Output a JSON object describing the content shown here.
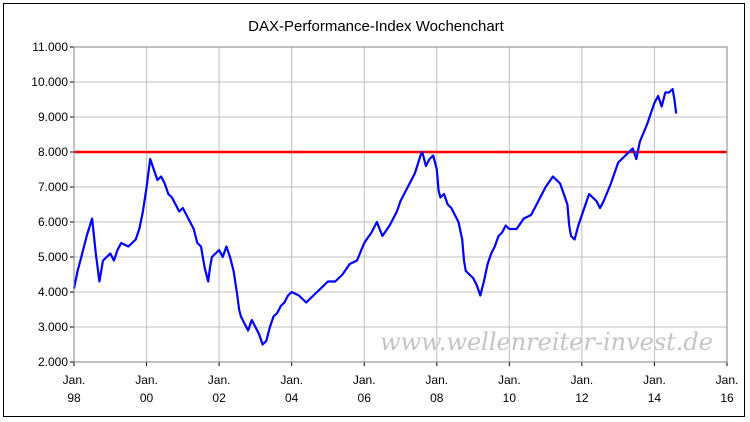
{
  "chart_data": {
    "type": "line",
    "title": "DAX-Performance-Index Wochenchart",
    "xlabel": "",
    "ylabel": "",
    "xlim": [
      1998.0,
      2016.0
    ],
    "ylim": [
      2000,
      11000
    ],
    "y_ticks": [
      2000,
      3000,
      4000,
      5000,
      6000,
      7000,
      8000,
      9000,
      10000,
      11000
    ],
    "y_tick_labels": [
      "2.000",
      "3.000",
      "4.000",
      "5.000",
      "6.000",
      "7.000",
      "8.000",
      "9.000",
      "10.000",
      "11.000"
    ],
    "x_ticks": [
      1998,
      2000,
      2002,
      2004,
      2006,
      2008,
      2010,
      2012,
      2014,
      2016
    ],
    "x_tick_labels": [
      {
        "top": "Jan.",
        "bottom": "98"
      },
      {
        "top": "Jan.",
        "bottom": "00"
      },
      {
        "top": "Jan.",
        "bottom": "02"
      },
      {
        "top": "Jan.",
        "bottom": "04"
      },
      {
        "top": "Jan.",
        "bottom": "06"
      },
      {
        "top": "Jan.",
        "bottom": "08"
      },
      {
        "top": "Jan.",
        "bottom": "10"
      },
      {
        "top": "Jan.",
        "bottom": "12"
      },
      {
        "top": "Jan.",
        "bottom": "14"
      },
      {
        "top": "Jan.",
        "bottom": "16"
      }
    ],
    "grid": true,
    "series": [
      {
        "color": "#0000ff",
        "x": [
          1998.0,
          1998.1,
          1998.2,
          1998.35,
          1998.5,
          1998.6,
          1998.7,
          1998.8,
          1998.9,
          1999.0,
          1999.1,
          1999.2,
          1999.3,
          1999.5,
          1999.7,
          1999.8,
          1999.9,
          2000.0,
          2000.1,
          2000.2,
          2000.3,
          2000.4,
          2000.5,
          2000.6,
          2000.7,
          2000.8,
          2000.9,
          2001.0,
          2001.1,
          2001.2,
          2001.3,
          2001.4,
          2001.5,
          2001.6,
          2001.7,
          2001.75,
          2001.8,
          2001.9,
          2002.0,
          2002.1,
          2002.2,
          2002.3,
          2002.4,
          2002.5,
          2002.55,
          2002.6,
          2002.7,
          2002.8,
          2002.9,
          2003.0,
          2003.1,
          2003.2,
          2003.3,
          2003.4,
          2003.5,
          2003.6,
          2003.7,
          2003.8,
          2003.9,
          2004.0,
          2004.2,
          2004.4,
          2004.6,
          2004.8,
          2005.0,
          2005.2,
          2005.4,
          2005.6,
          2005.8,
          2006.0,
          2006.2,
          2006.35,
          2006.5,
          2006.7,
          2006.9,
          2007.0,
          2007.2,
          2007.4,
          2007.55,
          2007.6,
          2007.7,
          2007.8,
          2007.9,
          2008.0,
          2008.05,
          2008.1,
          2008.2,
          2008.3,
          2008.4,
          2008.5,
          2008.6,
          2008.7,
          2008.75,
          2008.8,
          2008.9,
          2009.0,
          2009.1,
          2009.2,
          2009.3,
          2009.4,
          2009.5,
          2009.6,
          2009.7,
          2009.8,
          2009.9,
          2010.0,
          2010.2,
          2010.4,
          2010.6,
          2010.8,
          2011.0,
          2011.2,
          2011.4,
          2011.5,
          2011.6,
          2011.65,
          2011.7,
          2011.8,
          2011.9,
          2012.0,
          2012.2,
          2012.4,
          2012.5,
          2012.6,
          2012.8,
          2013.0,
          2013.2,
          2013.4,
          2013.5,
          2013.6,
          2013.8,
          2014.0,
          2014.1,
          2014.2,
          2014.3,
          2014.4,
          2014.5,
          2014.55,
          2014.6
        ],
        "y": [
          4100,
          4600,
          5000,
          5600,
          6100,
          5100,
          4300,
          4900,
          5000,
          5100,
          4900,
          5200,
          5400,
          5300,
          5500,
          5800,
          6300,
          7000,
          7800,
          7500,
          7200,
          7300,
          7100,
          6800,
          6700,
          6500,
          6300,
          6400,
          6200,
          6000,
          5800,
          5400,
          5300,
          4700,
          4300,
          4700,
          5000,
          5100,
          5200,
          5000,
          5300,
          5000,
          4600,
          3900,
          3500,
          3300,
          3100,
          2900,
          3200,
          3000,
          2800,
          2500,
          2600,
          3000,
          3300,
          3400,
          3600,
          3700,
          3900,
          4000,
          3900,
          3700,
          3900,
          4100,
          4300,
          4300,
          4500,
          4800,
          4900,
          5400,
          5700,
          6000,
          5600,
          5900,
          6300,
          6600,
          7000,
          7400,
          7900,
          8000,
          7600,
          7800,
          7900,
          7500,
          6900,
          6700,
          6800,
          6500,
          6400,
          6200,
          6000,
          5500,
          4900,
          4600,
          4500,
          4400,
          4200,
          3900,
          4300,
          4800,
          5100,
          5300,
          5600,
          5700,
          5900,
          5800,
          5800,
          6100,
          6200,
          6600,
          7000,
          7300,
          7100,
          6800,
          6500,
          5900,
          5600,
          5500,
          5900,
          6200,
          6800,
          6600,
          6400,
          6600,
          7100,
          7700,
          7900,
          8100,
          7800,
          8300,
          8800,
          9400,
          9600,
          9300,
          9700,
          9700,
          9800,
          9500,
          9100
        ]
      }
    ],
    "reference_line": {
      "y": 8000,
      "color": "#ff0000"
    },
    "watermark": "www.wellenreiter-invest.de"
  }
}
